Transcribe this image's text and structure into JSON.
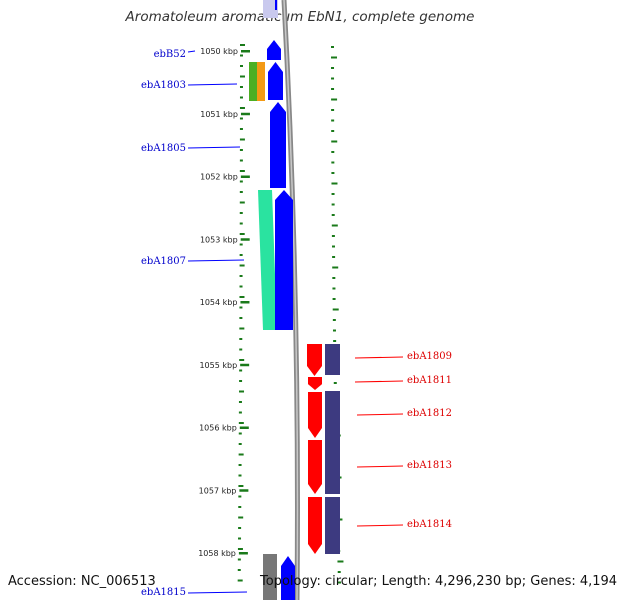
{
  "title": "Aromatoleum aromaticum EbN1, complete genome",
  "footer": {
    "accession": "Accession: NC_006513",
    "summary": "Topology: circular; Length: 4,296,230 bp; Genes: 4,194"
  },
  "colors": {
    "forward_gene": "#0000ff",
    "reverse_gene": "#ff0000",
    "reverse_track": "#3d3a80",
    "teal_feature": "#2ae3a0",
    "green_feature": "#4caf23",
    "orange_feature": "#f39a14",
    "gc_skew": "#1a7a1a",
    "backbone": "#888888",
    "forward_label": "#0000cc",
    "reverse_label": "#dd0000"
  },
  "scale": {
    "unit": "kbp",
    "ticks": [
      "1050 kbp",
      "1051 kbp",
      "1052 kbp",
      "1053 kbp",
      "1054 kbp",
      "1055 kbp",
      "1056 kbp",
      "1057 kbp",
      "1058 kbp"
    ]
  },
  "genes": [
    {
      "label": "ebB52",
      "strand": "forward",
      "start_kbp": 1049.8,
      "end_kbp": 1050.1
    },
    {
      "label": "ebA1803",
      "strand": "forward",
      "start_kbp": 1050.2,
      "end_kbp": 1050.6
    },
    {
      "label": "ebA1805",
      "strand": "forward",
      "start_kbp": 1050.6,
      "end_kbp": 1052.2
    },
    {
      "label": "ebA1807",
      "strand": "forward",
      "start_kbp": 1052.2,
      "end_kbp": 1054.45
    },
    {
      "label": "ebA1809",
      "strand": "reverse",
      "start_kbp": 1054.72,
      "end_kbp": 1055.23
    },
    {
      "label": "ebA1811",
      "strand": "reverse",
      "start_kbp": 1055.25,
      "end_kbp": 1055.47
    },
    {
      "label": "ebA1812",
      "strand": "reverse",
      "start_kbp": 1055.47,
      "end_kbp": 1056.22
    },
    {
      "label": "ebA1813",
      "strand": "reverse",
      "start_kbp": 1056.22,
      "end_kbp": 1057.08
    },
    {
      "label": "ebA1814",
      "strand": "reverse",
      "start_kbp": 1057.08,
      "end_kbp": 1058.04
    },
    {
      "label": "ebA1815",
      "strand": "forward",
      "start_kbp": 1058.1,
      "end_kbp": 1058.8
    }
  ]
}
